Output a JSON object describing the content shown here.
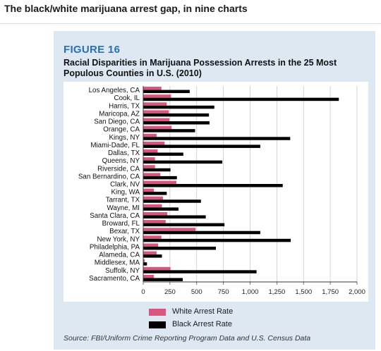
{
  "headline": "The black/white marijuana arrest gap, in nine charts",
  "figure": {
    "label": "FIGURE 16",
    "title": "Racial Disparities in Marijuana Possession Arrests in the 25 Most Populous Counties in U.S. (2010)",
    "source": "Source: FBI/Uniform Crime Reporting Program Data and U.S. Census Data"
  },
  "colors": {
    "white_series": "#d9547e",
    "black_series": "#000000"
  },
  "chart_data": {
    "type": "bar",
    "orientation": "horizontal",
    "categories": [
      "Los Angeles, CA",
      "Cook, IL",
      "Harris, TX",
      "Maricopa, AZ",
      "San Diego, CA",
      "Orange, CA",
      "Kings, NY",
      "Miami-Dade, FL",
      "Dallas, TX",
      "Queens, NY",
      "Riverside, CA",
      "San Bernardino, CA",
      "Clark, NV",
      "King, WA",
      "Tarrant, TX",
      "Wayne, MI",
      "Santa Clara, CA",
      "Broward, FL",
      "Bexar, TX",
      "New York, NY",
      "Philadelphia, PA",
      "Alameda, CA",
      "Middlesex, MA",
      "Suffolk, NY",
      "Sacramento, CA"
    ],
    "series": [
      {
        "name": "White Arrest Rate",
        "values": [
          170,
          260,
          220,
          240,
          245,
          265,
          125,
          200,
          135,
          110,
          110,
          160,
          310,
          100,
          185,
          175,
          225,
          210,
          490,
          170,
          140,
          125,
          15,
          255,
          100
        ]
      },
      {
        "name": "Black Arrest Rate",
        "values": [
          435,
          1830,
          665,
          615,
          620,
          485,
          1375,
          1095,
          375,
          740,
          255,
          315,
          1305,
          220,
          540,
          330,
          585,
          760,
          1095,
          1380,
          680,
          175,
          35,
          1060,
          370
        ]
      }
    ],
    "xlim": [
      0,
      2000
    ],
    "xticks": [
      "0",
      "250",
      "500",
      "750",
      "1,000",
      "1,250",
      "1,500",
      "1,750",
      "2,000"
    ],
    "grid": "vertical",
    "legend_placement": "bottom"
  }
}
